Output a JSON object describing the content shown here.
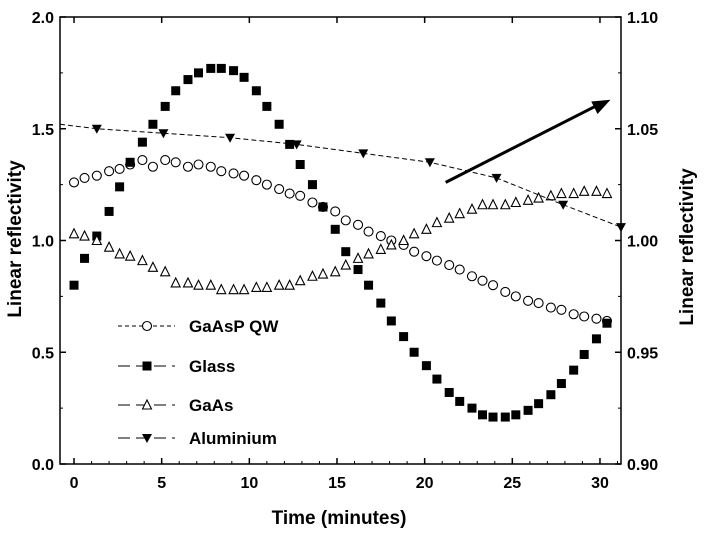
{
  "chart_data": {
    "type": "scatter",
    "xlabel": "Time (minutes)",
    "ylabel": "Linear reflectivity",
    "ylabel_right": "Linear reflectivity",
    "xlim": [
      -0.8,
      31.2
    ],
    "ylim": [
      0.0,
      2.0
    ],
    "ylim_right": [
      0.9,
      1.1
    ],
    "x_ticks": [
      0,
      5,
      10,
      15,
      20,
      25,
      30
    ],
    "x_tick_labels": [
      "0",
      "5",
      "10",
      "15",
      "20",
      "25",
      "30"
    ],
    "y_ticks": [
      0.0,
      0.5,
      1.0,
      1.5,
      2.0
    ],
    "y_tick_labels": [
      "0.0",
      "0.5",
      "1.0",
      "1.5",
      "2.0"
    ],
    "y_right_ticks": [
      0.9,
      0.95,
      1.0,
      1.05,
      1.1
    ],
    "y_right_tick_labels": [
      "0.90",
      "0.95",
      "1.00",
      "1.05",
      "1.10"
    ],
    "grid": false,
    "legend_position": "bottom-left",
    "annotation": {
      "type": "arrow",
      "from": [
        21.2,
        1.26
      ],
      "to": [
        30.6,
        1.63
      ]
    },
    "series": [
      {
        "name": "GaAsP QW",
        "marker": "open-circle",
        "line": "short-dash",
        "axis": "left",
        "x": [
          0.0,
          0.6,
          1.3,
          2.0,
          2.6,
          3.2,
          3.9,
          4.5,
          5.2,
          5.8,
          6.5,
          7.1,
          7.8,
          8.4,
          9.1,
          9.7,
          10.4,
          11.0,
          11.7,
          12.3,
          12.9,
          13.6,
          14.2,
          14.9,
          15.5,
          16.2,
          16.8,
          17.5,
          18.1,
          18.8,
          19.4,
          20.1,
          20.7,
          21.4,
          22.0,
          22.7,
          23.3,
          23.9,
          24.6,
          25.2,
          25.9,
          26.5,
          27.2,
          27.8,
          28.5,
          29.1,
          29.8,
          30.4
        ],
        "y": [
          1.26,
          1.28,
          1.29,
          1.31,
          1.32,
          1.34,
          1.36,
          1.33,
          1.36,
          1.35,
          1.33,
          1.34,
          1.33,
          1.31,
          1.3,
          1.29,
          1.27,
          1.25,
          1.23,
          1.21,
          1.2,
          1.17,
          1.15,
          1.13,
          1.09,
          1.07,
          1.04,
          1.02,
          1.0,
          0.98,
          0.95,
          0.93,
          0.91,
          0.89,
          0.87,
          0.84,
          0.82,
          0.8,
          0.77,
          0.75,
          0.73,
          0.72,
          0.7,
          0.69,
          0.67,
          0.66,
          0.65,
          0.64
        ]
      },
      {
        "name": "Glass",
        "marker": "filled-square",
        "line": "long-dash",
        "axis": "left",
        "x": [
          0.0,
          0.6,
          1.3,
          2.0,
          2.6,
          3.2,
          3.9,
          4.5,
          5.2,
          5.8,
          6.5,
          7.1,
          7.8,
          8.4,
          9.1,
          9.7,
          10.4,
          11.0,
          11.7,
          12.3,
          12.9,
          13.6,
          14.2,
          14.9,
          15.5,
          16.2,
          16.8,
          17.5,
          18.1,
          18.8,
          19.4,
          20.1,
          20.7,
          21.4,
          22.0,
          22.7,
          23.3,
          23.9,
          24.6,
          25.2,
          25.9,
          26.5,
          27.2,
          27.8,
          28.5,
          29.1,
          29.8,
          30.4
        ],
        "y": [
          0.8,
          0.92,
          1.02,
          1.13,
          1.24,
          1.35,
          1.44,
          1.52,
          1.6,
          1.67,
          1.72,
          1.75,
          1.77,
          1.77,
          1.76,
          1.73,
          1.67,
          1.6,
          1.52,
          1.43,
          1.34,
          1.25,
          1.15,
          1.05,
          0.95,
          0.87,
          0.8,
          0.72,
          0.64,
          0.57,
          0.5,
          0.44,
          0.38,
          0.32,
          0.28,
          0.25,
          0.22,
          0.21,
          0.21,
          0.22,
          0.24,
          0.27,
          0.31,
          0.36,
          0.42,
          0.49,
          0.56,
          0.63
        ]
      },
      {
        "name": "GaAs",
        "marker": "open-triangle-up",
        "line": "long-dash",
        "axis": "left",
        "x": [
          0.0,
          0.6,
          1.3,
          2.0,
          2.6,
          3.2,
          3.9,
          4.5,
          5.2,
          5.8,
          6.5,
          7.1,
          7.8,
          8.4,
          9.1,
          9.7,
          10.4,
          11.0,
          11.7,
          12.3,
          12.9,
          13.6,
          14.2,
          14.9,
          15.5,
          16.2,
          16.8,
          17.5,
          18.1,
          18.8,
          19.4,
          20.1,
          20.7,
          21.4,
          22.0,
          22.7,
          23.3,
          23.9,
          24.6,
          25.2,
          25.9,
          26.5,
          27.2,
          27.8,
          28.5,
          29.1,
          29.8,
          30.4
        ],
        "y": [
          1.03,
          1.02,
          1.0,
          0.97,
          0.94,
          0.93,
          0.91,
          0.88,
          0.86,
          0.81,
          0.81,
          0.8,
          0.8,
          0.78,
          0.78,
          0.78,
          0.79,
          0.79,
          0.8,
          0.8,
          0.82,
          0.84,
          0.85,
          0.86,
          0.89,
          0.92,
          0.94,
          0.96,
          0.98,
          1.0,
          1.03,
          1.05,
          1.08,
          1.1,
          1.12,
          1.14,
          1.16,
          1.16,
          1.16,
          1.17,
          1.18,
          1.19,
          1.2,
          1.21,
          1.21,
          1.22,
          1.22,
          1.21
        ]
      },
      {
        "name": "Aluminium",
        "marker": "filled-triangle-down",
        "line": "long-dash",
        "axis": "right",
        "x": [
          1.3,
          5.1,
          8.9,
          12.7,
          16.5,
          20.3,
          24.1,
          27.9,
          31.2
        ],
        "y": [
          1.05,
          1.048,
          1.046,
          1.043,
          1.039,
          1.035,
          1.028,
          1.016,
          1.006
        ]
      }
    ]
  }
}
